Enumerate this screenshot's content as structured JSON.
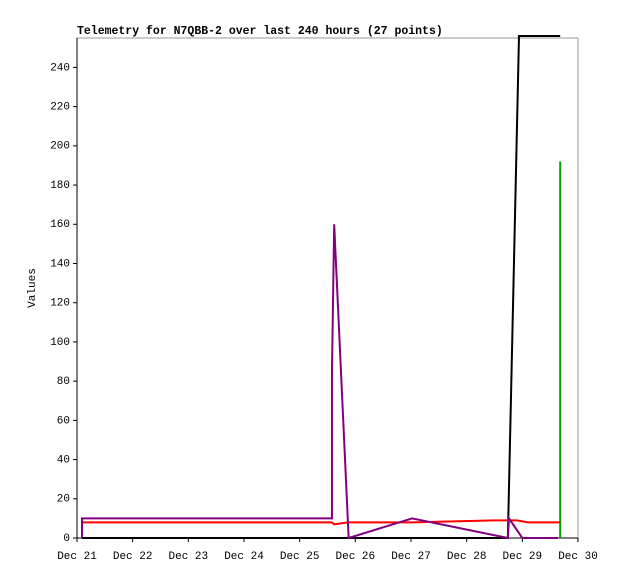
{
  "chart_data": {
    "type": "line",
    "title": "Telemetry for N7QBB-2 over last 240 hours (27 points)",
    "y_label": "Values",
    "xlim": [
      21,
      30
    ],
    "xticks": [
      {
        "value": 21,
        "label": "Dec 21"
      },
      {
        "value": 22,
        "label": "Dec 22"
      },
      {
        "value": 23,
        "label": "Dec 23"
      },
      {
        "value": 24,
        "label": "Dec 24"
      },
      {
        "value": 25,
        "label": "Dec 25"
      },
      {
        "value": 26,
        "label": "Dec 26"
      },
      {
        "value": 27,
        "label": "Dec 27"
      },
      {
        "value": 28,
        "label": "Dec 28"
      },
      {
        "value": 29,
        "label": "Dec 29"
      },
      {
        "value": 30,
        "label": "Dec 30"
      }
    ],
    "ylim": [
      0,
      255
    ],
    "yticks": [
      0,
      20,
      40,
      60,
      80,
      100,
      120,
      140,
      160,
      180,
      200,
      220,
      240
    ],
    "series": [
      {
        "color": "#000000",
        "x": [
          21.09,
          28.74,
          28.94,
          29.68
        ],
        "values": [
          0,
          0,
          256,
          256
        ]
      },
      {
        "color": "#00a000",
        "x": [
          29.68,
          29.68
        ],
        "values": [
          0,
          192
        ]
      },
      {
        "color": "#ff0000",
        "x": [
          21.09,
          25.58,
          25.62,
          25.88,
          27.02,
          28.5,
          28.9,
          29.1,
          29.68
        ],
        "values": [
          8,
          8,
          7,
          8,
          8,
          9,
          9,
          8,
          8
        ]
      },
      {
        "color": "#800080",
        "x": [
          21.09,
          21.09,
          25.58,
          25.58,
          25.62,
          25.88,
          27.02,
          28.74,
          28.76,
          29.0,
          29.64
        ],
        "values": [
          0,
          10,
          10,
          85,
          160,
          0,
          10,
          0,
          10,
          0,
          0
        ]
      }
    ]
  }
}
